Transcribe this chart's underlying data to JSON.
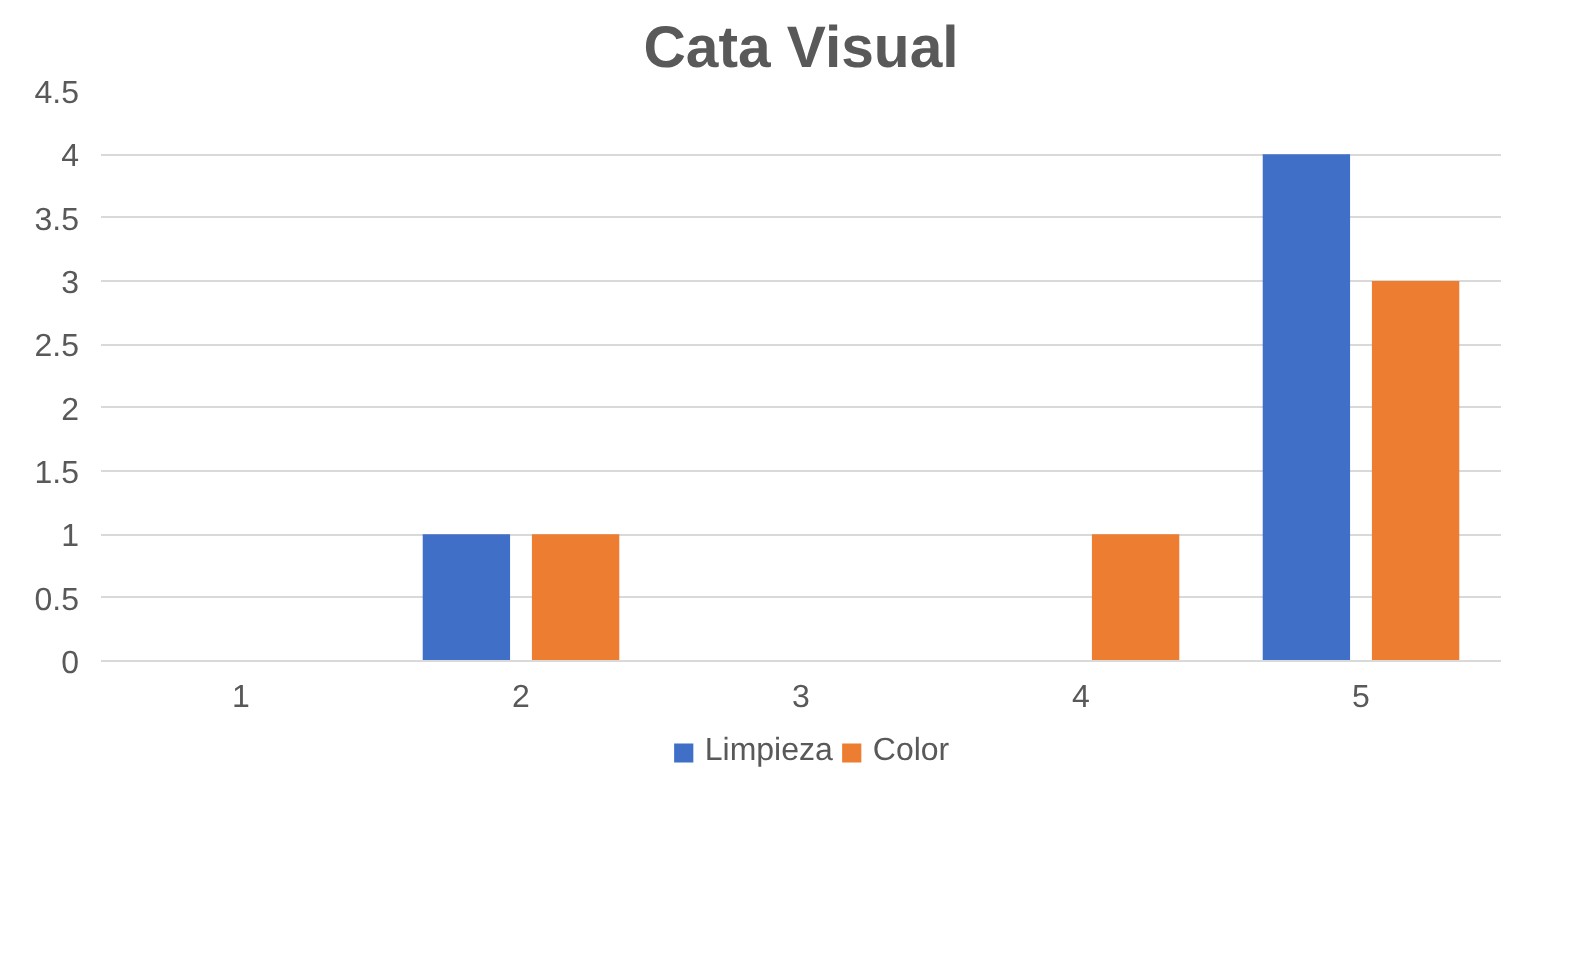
{
  "chart_data": {
    "type": "bar",
    "title": "Cata Visual",
    "categories": [
      "1",
      "2",
      "3",
      "4",
      "5"
    ],
    "series": [
      {
        "name": "Limpieza",
        "color": "#3f6fc6",
        "values": [
          0,
          1,
          0,
          0,
          4
        ]
      },
      {
        "name": "Color",
        "color": "#ed7d31",
        "values": [
          0,
          1,
          0,
          1,
          3
        ]
      }
    ],
    "ylim": [
      0,
      4.5
    ],
    "yticks": [
      0,
      0.5,
      1,
      1.5,
      2,
      2.5,
      3,
      3.5,
      4,
      4.5
    ],
    "grid": "y",
    "legend": "bottom"
  }
}
